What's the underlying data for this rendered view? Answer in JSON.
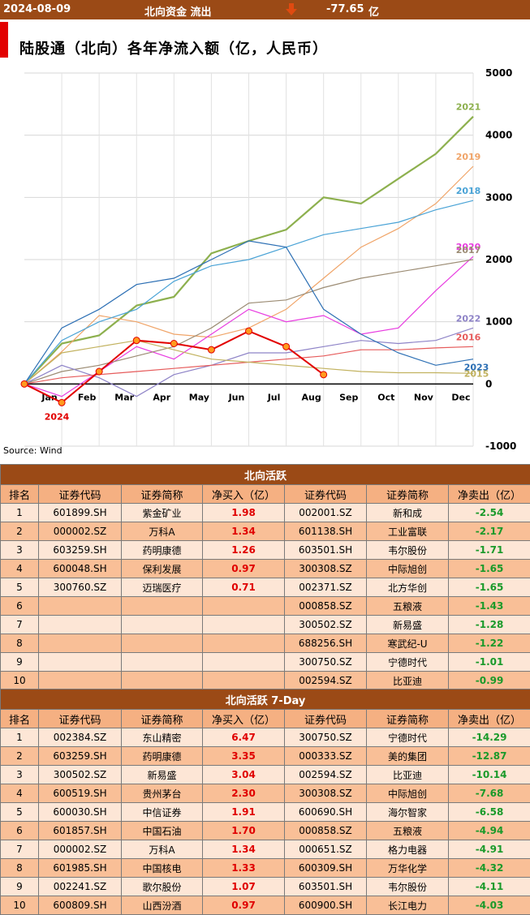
{
  "header": {
    "date": "2024-08-09",
    "label": "北向资金 流出",
    "value": "-77.65",
    "unit": "亿",
    "arrow_color": "#e04a10"
  },
  "chart_title": "陆股通（北向）各年净流入额（亿，人民币）",
  "source": "Source: Wind",
  "chart_data": {
    "type": "line",
    "x_labels": [
      "Jan",
      "Feb",
      "Mar",
      "Apr",
      "May",
      "Jun",
      "Jul",
      "Aug",
      "Sep",
      "Oct",
      "Nov",
      "Dec"
    ],
    "y_ticks": [
      "5000",
      "4000",
      "3000",
      "2000",
      "1000",
      "0",
      "-1000"
    ],
    "ylim": [
      -1000,
      5000
    ],
    "grid": true,
    "series": [
      {
        "name": "2021",
        "color": "#8db04e",
        "values": [
          0,
          650,
          780,
          1260,
          1400,
          2100,
          2300,
          2480,
          3000,
          2900,
          3300,
          3700,
          4300
        ]
      },
      {
        "name": "2019",
        "color": "#f0a468",
        "values": [
          0,
          520,
          1100,
          1000,
          800,
          750,
          900,
          1200,
          1700,
          2200,
          2500,
          2900,
          3500
        ]
      },
      {
        "name": "2018",
        "color": "#4aa3d6",
        "values": [
          0,
          700,
          1000,
          1200,
          1650,
          1900,
          2000,
          2200,
          2400,
          2500,
          2600,
          2800,
          2950
        ]
      },
      {
        "name": "2020",
        "color": "#e83ce0",
        "values": [
          0,
          -200,
          200,
          600,
          400,
          800,
          1200,
          1000,
          1100,
          800,
          900,
          1500,
          2050
        ]
      },
      {
        "name": "2017",
        "color": "#9c8c74",
        "values": [
          0,
          200,
          300,
          450,
          600,
          900,
          1300,
          1350,
          1550,
          1700,
          1800,
          1900,
          2000
        ]
      },
      {
        "name": "2022",
        "color": "#8e83c7",
        "values": [
          0,
          300,
          100,
          -200,
          150,
          300,
          500,
          500,
          600,
          700,
          650,
          700,
          900
        ]
      },
      {
        "name": "2016",
        "color": "#e65b5b",
        "values": [
          0,
          100,
          150,
          200,
          250,
          300,
          350,
          400,
          450,
          550,
          550,
          580,
          600
        ]
      },
      {
        "name": "2023",
        "color": "#2c6fb4",
        "values": [
          0,
          900,
          1200,
          1600,
          1700,
          2000,
          2300,
          2200,
          1200,
          800,
          500,
          300,
          400
        ]
      },
      {
        "name": "2015",
        "color": "#c2b25f",
        "values": [
          0,
          500,
          600,
          700,
          550,
          400,
          350,
          300,
          250,
          200,
          180,
          180,
          170
        ]
      },
      {
        "name": "2024",
        "color": "#e20000",
        "values": [
          0,
          -300,
          200,
          700,
          650,
          550,
          850,
          600,
          150,
          null,
          null,
          null,
          null
        ]
      }
    ]
  },
  "table1": {
    "title": "北向活跃",
    "headers": [
      "排名",
      "证券代码",
      "证券简称",
      "净买入（亿）",
      "证券代码",
      "证券简称",
      "净卖出（亿）"
    ],
    "rows": [
      [
        "1",
        "601899.SH",
        "紫金矿业",
        "1.98",
        "002001.SZ",
        "新和成",
        "-2.54"
      ],
      [
        "2",
        "000002.SZ",
        "万科A",
        "1.34",
        "601138.SH",
        "工业富联",
        "-2.17"
      ],
      [
        "3",
        "603259.SH",
        "药明康德",
        "1.26",
        "603501.SH",
        "韦尔股份",
        "-1.71"
      ],
      [
        "4",
        "600048.SH",
        "保利发展",
        "0.97",
        "300308.SZ",
        "中际旭创",
        "-1.65"
      ],
      [
        "5",
        "300760.SZ",
        "迈瑞医疗",
        "0.71",
        "002371.SZ",
        "北方华创",
        "-1.65"
      ],
      [
        "6",
        "",
        "",
        "",
        "000858.SZ",
        "五粮液",
        "-1.43"
      ],
      [
        "7",
        "",
        "",
        "",
        "300502.SZ",
        "新易盛",
        "-1.28"
      ],
      [
        "8",
        "",
        "",
        "",
        "688256.SH",
        "寒武纪-U",
        "-1.22"
      ],
      [
        "9",
        "",
        "",
        "",
        "300750.SZ",
        "宁德时代",
        "-1.01"
      ],
      [
        "10",
        "",
        "",
        "",
        "002594.SZ",
        "比亚迪",
        "-0.99"
      ]
    ]
  },
  "table2": {
    "title": "北向活跃 7-Day",
    "headers": [
      "排名",
      "证券代码",
      "证券简称",
      "净买入（亿）",
      "证券代码",
      "证券简称",
      "净卖出（亿）"
    ],
    "rows": [
      [
        "1",
        "002384.SZ",
        "东山精密",
        "6.47",
        "300750.SZ",
        "宁德时代",
        "-14.29"
      ],
      [
        "2",
        "603259.SH",
        "药明康德",
        "3.35",
        "000333.SZ",
        "美的集团",
        "-12.87"
      ],
      [
        "3",
        "300502.SZ",
        "新易盛",
        "3.04",
        "002594.SZ",
        "比亚迪",
        "-10.14"
      ],
      [
        "4",
        "600519.SH",
        "贵州茅台",
        "2.30",
        "300308.SZ",
        "中际旭创",
        "-7.68"
      ],
      [
        "5",
        "600030.SH",
        "中信证券",
        "1.91",
        "600690.SH",
        "海尔智家",
        "-6.58"
      ],
      [
        "6",
        "601857.SH",
        "中国石油",
        "1.70",
        "000858.SZ",
        "五粮液",
        "-4.94"
      ],
      [
        "7",
        "000002.SZ",
        "万科A",
        "1.34",
        "000651.SZ",
        "格力电器",
        "-4.91"
      ],
      [
        "8",
        "601985.SH",
        "中国核电",
        "1.33",
        "600309.SH",
        "万华化学",
        "-4.32"
      ],
      [
        "9",
        "002241.SZ",
        "歌尔股份",
        "1.07",
        "603501.SH",
        "韦尔股份",
        "-4.11"
      ],
      [
        "10",
        "600809.SH",
        "山西汾酒",
        "0.97",
        "600900.SH",
        "长江电力",
        "-4.03"
      ]
    ]
  }
}
